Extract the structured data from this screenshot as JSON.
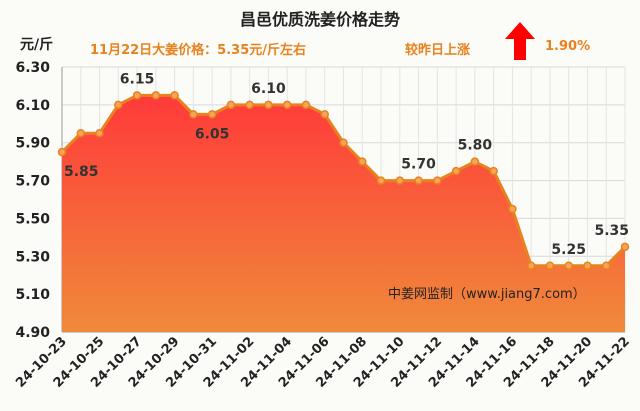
{
  "header": {
    "title": "昌邑优质洗姜价格走势",
    "unit": "元/斤",
    "price_text": "11月22日大姜价格：5.35元/斤左右",
    "change_text": "较昨日上涨",
    "change_pct": "1.90%"
  },
  "colors": {
    "line": "#e8821e",
    "fill_top": "#ff3a3a",
    "fill_bottom": "#f08a3a",
    "up_arrow": "#ff0000"
  },
  "icons": {
    "trend": "up-arrow-icon"
  },
  "chart_data": {
    "type": "area",
    "title": "昌邑优质洗姜价格走势",
    "ylabel": "元/斤",
    "ylim": [
      4.9,
      6.3
    ],
    "yticks": [
      "4.90",
      "5.10",
      "5.30",
      "5.50",
      "5.70",
      "5.90",
      "6.10",
      "6.30"
    ],
    "x": [
      "24-10-23",
      "24-10-24",
      "24-10-25",
      "24-10-26",
      "24-10-27",
      "24-10-28",
      "24-10-29",
      "24-10-30",
      "24-10-31",
      "24-11-01",
      "24-11-02",
      "24-11-03",
      "24-11-04",
      "24-11-05",
      "24-11-06",
      "24-11-07",
      "24-11-08",
      "24-11-09",
      "24-11-10",
      "24-11-11",
      "24-11-12",
      "24-11-13",
      "24-11-14",
      "24-11-15",
      "24-11-16",
      "24-11-17",
      "24-11-18",
      "24-11-19",
      "24-11-20",
      "24-11-21",
      "24-11-22"
    ],
    "xtick_labels": [
      "24-10-23",
      "24-10-25",
      "24-10-27",
      "24-10-29",
      "24-10-31",
      "24-11-02",
      "24-11-04",
      "24-11-06",
      "24-11-08",
      "24-11-10",
      "24-11-12",
      "24-11-14",
      "24-11-16",
      "24-11-18",
      "24-11-20",
      "24-11-22"
    ],
    "values": [
      5.85,
      5.95,
      5.95,
      6.1,
      6.15,
      6.15,
      6.15,
      6.05,
      6.05,
      6.1,
      6.1,
      6.1,
      6.1,
      6.1,
      6.05,
      5.9,
      5.8,
      5.7,
      5.7,
      5.7,
      5.7,
      5.75,
      5.8,
      5.75,
      5.55,
      5.25,
      5.25,
      5.25,
      5.25,
      5.25,
      5.35
    ],
    "data_labels": [
      {
        "index": 0,
        "text": "5.85"
      },
      {
        "index": 4,
        "text": "6.15"
      },
      {
        "index": 8,
        "text": "6.05"
      },
      {
        "index": 11,
        "text": "6.10"
      },
      {
        "index": 19,
        "text": "5.70"
      },
      {
        "index": 22,
        "text": "5.80"
      },
      {
        "index": 27,
        "text": "5.25"
      },
      {
        "index": 30,
        "text": "5.35"
      }
    ],
    "grid": true,
    "annotation": "中姜网监制（www.jiang7.com）"
  }
}
